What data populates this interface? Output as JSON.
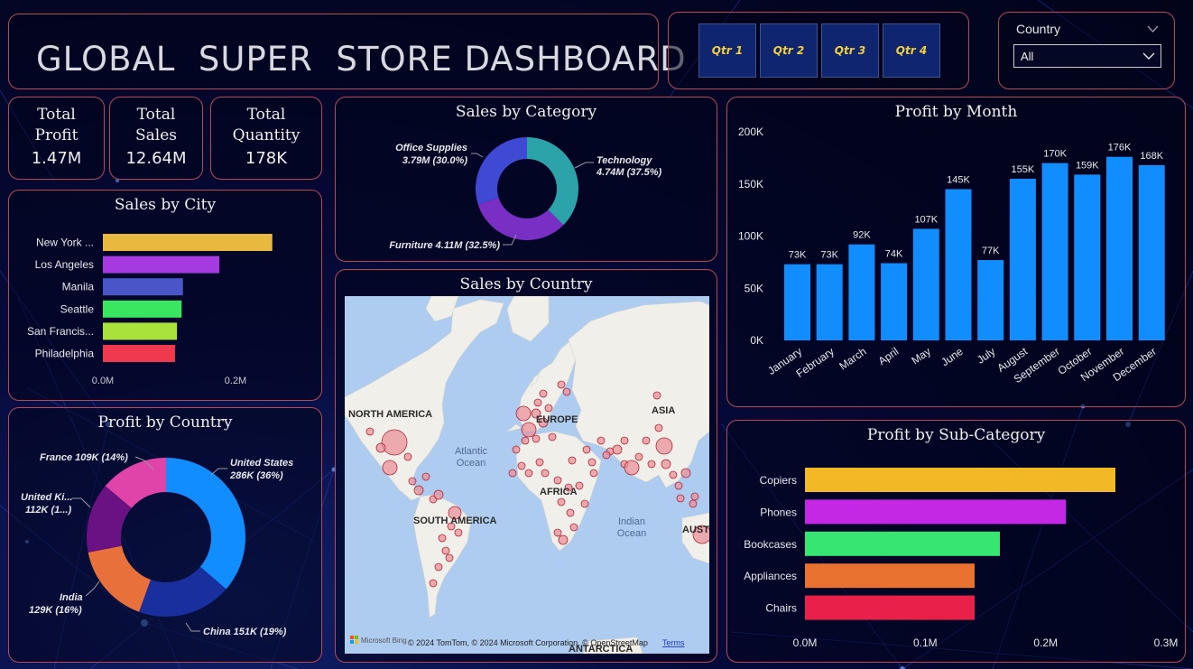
{
  "header": {
    "title": "GLOBAL  SUPER  STORE DASHBOARD"
  },
  "quarters": [
    "Qtr 1",
    "Qtr 2",
    "Qtr 3",
    "Qtr 4"
  ],
  "country_slicer": {
    "label": "Country",
    "value": "All"
  },
  "kpis": {
    "profit": {
      "label_line1": "Total",
      "label_line2": "Profit",
      "value": "1.47M"
    },
    "sales": {
      "label_line1": "Total",
      "label_line2": "Sales",
      "value": "12.64M"
    },
    "quantity": {
      "label_line1": "Total",
      "label_line2": "Quantity",
      "value": "178K"
    }
  },
  "map": {
    "title": "Sales by Country",
    "labels": {
      "north_america": "NORTH AMERICA",
      "south_america": "SOUTH AMERICA",
      "europe": "EUROPE",
      "africa": "AFRICA",
      "asia": "ASIA",
      "australia": "AUST",
      "antarctica": "ANTARCTICA",
      "atlantic1": "Atlantic",
      "atlantic2": "Ocean",
      "indian1": "Indian",
      "indian2": "Ocean"
    },
    "logo": "Microsoft Bing",
    "attribution": "© 2024 TomTom, © 2024 Microsoft Corporation, © OpenStreetMap",
    "terms": "Terms"
  },
  "colors": {
    "accent_border": "#b84a55",
    "bar_blue": "#118dff",
    "qtr_text": "#f2cf3b"
  },
  "chart_data": [
    {
      "id": "sales_by_category",
      "type": "pie",
      "title": "Sales by Category",
      "categories": [
        "Technology",
        "Furniture",
        "Office Supplies"
      ],
      "values": [
        4.74,
        4.11,
        3.79
      ],
      "labels": [
        "Technology 4.74M (37.5%)",
        "Furniture 4.11M (32.5%)",
        "Office Supplies 3.79M (30.0%)"
      ],
      "label_parts": {
        "office_line1": "Office Supplies",
        "office_line2": "3.79M (30.0%)",
        "tech_line1": "Technology",
        "tech_line2": "4.74M (37.5%)",
        "furniture": "Furniture 4.11M (32.5%)"
      },
      "colors": [
        "#2ca3a8",
        "#7a2fc4",
        "#3f49d4"
      ]
    },
    {
      "id": "sales_by_city",
      "type": "bar",
      "orientation": "horizontal",
      "title": "Sales by City",
      "categories": [
        "New York ...",
        "Los Angeles",
        "Manila",
        "Seattle",
        "San Francis...",
        "Philadelphia"
      ],
      "values": [
        0.256,
        0.176,
        0.121,
        0.119,
        0.112,
        0.109
      ],
      "colors": [
        "#e8b93e",
        "#a43ae0",
        "#4a55c8",
        "#3ae65f",
        "#a8e23a",
        "#f0384f"
      ],
      "xticks": [
        "0.0M",
        "0.2M"
      ],
      "xlim": [
        0,
        0.3
      ]
    },
    {
      "id": "profit_by_month",
      "type": "bar",
      "title": "Profit by Month",
      "categories": [
        "January",
        "February",
        "March",
        "April",
        "May",
        "June",
        "July",
        "August",
        "September",
        "October",
        "November",
        "December"
      ],
      "values": [
        73,
        73,
        92,
        74,
        107,
        145,
        77,
        155,
        170,
        159,
        176,
        168
      ],
      "value_labels": [
        "73K",
        "73K",
        "92K",
        "74K",
        "107K",
        "145K",
        "77K",
        "155K",
        "170K",
        "159K",
        "176K",
        "168K"
      ],
      "yticks": [
        "0K",
        "50K",
        "100K",
        "150K",
        "200K"
      ],
      "ylim": [
        0,
        200
      ],
      "unit": "K",
      "color": "#118dff"
    },
    {
      "id": "profit_by_country",
      "type": "pie",
      "title": "Profit by Country",
      "categories": [
        "United States",
        "China",
        "India",
        "United Kingdom",
        "France"
      ],
      "values": [
        286,
        151,
        129,
        112,
        109
      ],
      "label_parts": {
        "us_line1": "United States",
        "us_line2": "286K (36%)",
        "china": "China 151K (19%)",
        "india_line1": "India",
        "india_line2": "129K (16%)",
        "uk_line1": "United Ki...",
        "uk_line2": "112K (1...)",
        "france": "France 109K (14%)"
      },
      "colors": [
        "#118dff",
        "#1a2f9e",
        "#e8703a",
        "#6a1184",
        "#e044a8"
      ]
    },
    {
      "id": "profit_by_subcategory",
      "type": "bar",
      "orientation": "horizontal",
      "title": "Profit by Sub-Category",
      "categories": [
        "Copiers",
        "Phones",
        "Bookcases",
        "Appliances",
        "Chairs"
      ],
      "values": [
        0.258,
        0.217,
        0.162,
        0.141,
        0.141
      ],
      "colors": [
        "#f2b826",
        "#c428e4",
        "#36e572",
        "#ea7230",
        "#e8204a"
      ],
      "xticks": [
        "0.0M",
        "0.1M",
        "0.2M",
        "0.3M"
      ],
      "xlim": [
        0,
        0.3
      ]
    }
  ]
}
